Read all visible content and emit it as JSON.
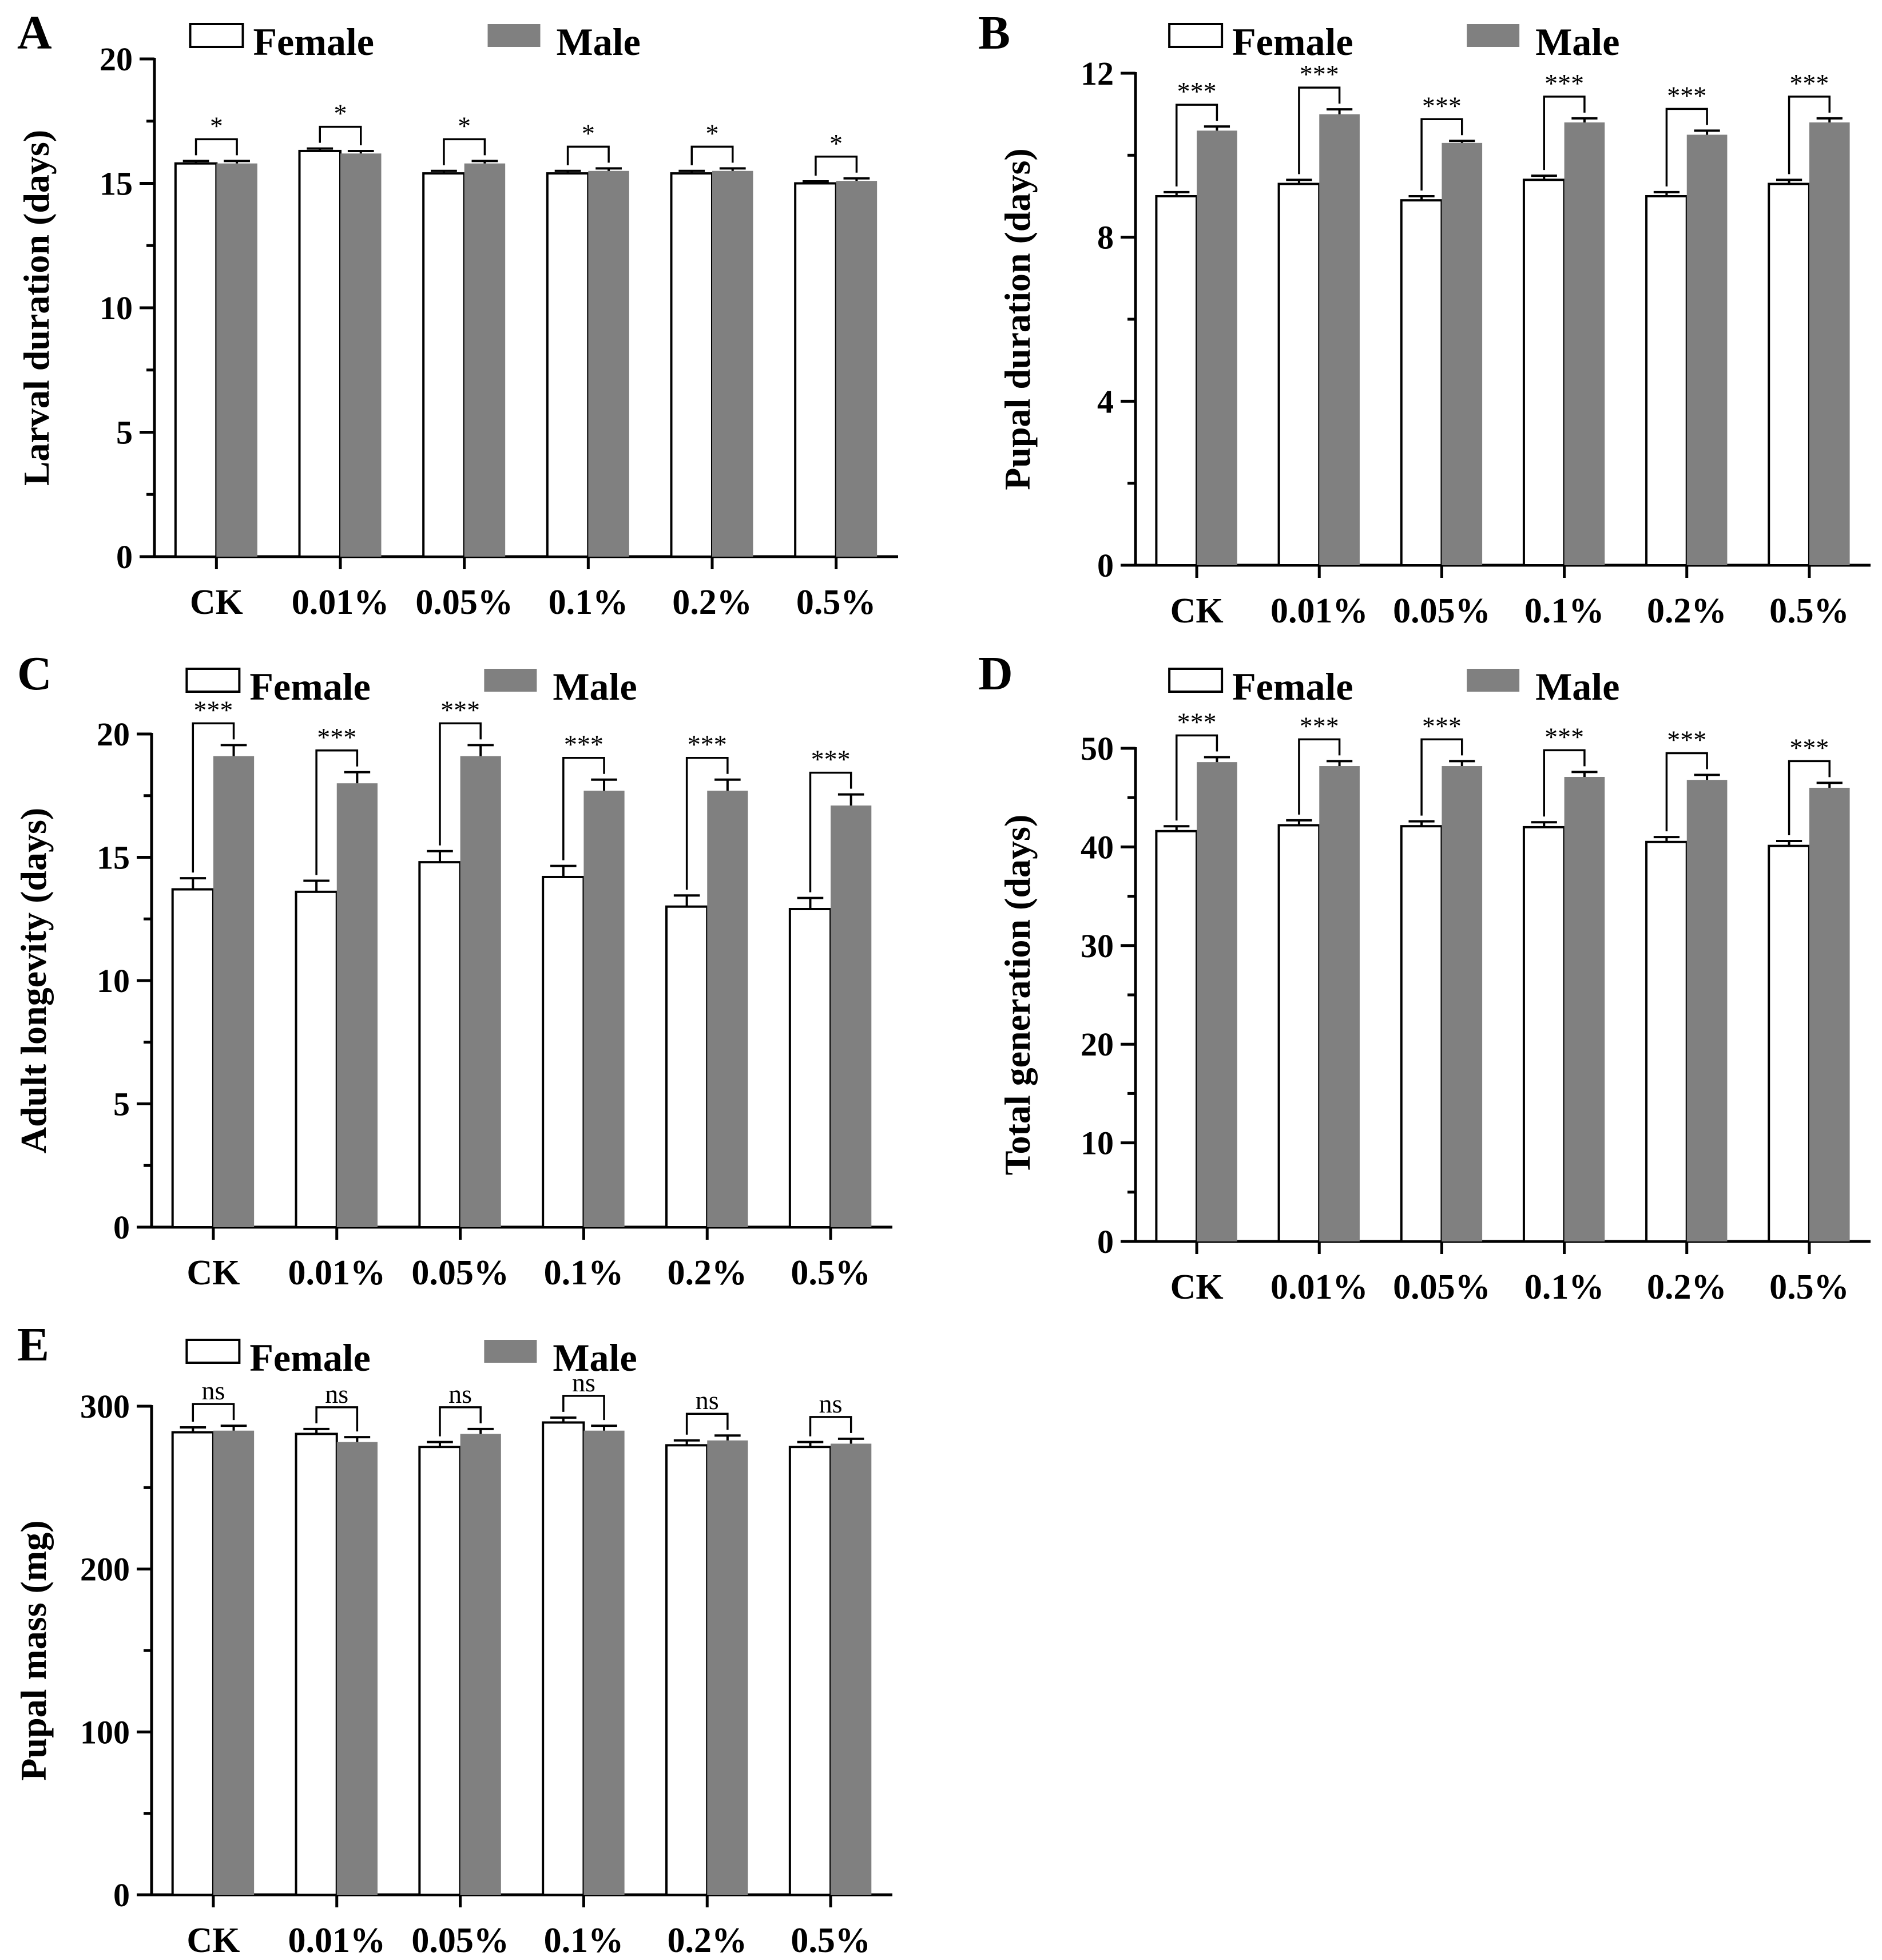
{
  "colors": {
    "female_fill": "#ffffff",
    "male_fill": "#808080",
    "stroke": "#000000"
  },
  "chart_data": [
    {
      "panel": "A",
      "type": "bar",
      "ylabel": "Larval duration (days)",
      "ylim": [
        0,
        20
      ],
      "yticks": [
        0,
        5,
        10,
        15,
        20
      ],
      "minor_per_major": 1,
      "categories": [
        "CK",
        "0.01%",
        "0.05%",
        "0.1%",
        "0.2%",
        "0.5%"
      ],
      "series": [
        {
          "name": "Female",
          "values": [
            15.8,
            16.3,
            15.4,
            15.4,
            15.4,
            15.0
          ],
          "errors": [
            0.1,
            0.1,
            0.1,
            0.1,
            0.1,
            0.08
          ]
        },
        {
          "name": "Male",
          "values": [
            15.8,
            16.2,
            15.8,
            15.5,
            15.5,
            15.1
          ],
          "errors": [
            0.1,
            0.1,
            0.1,
            0.1,
            0.1,
            0.1
          ]
        }
      ],
      "significance": [
        "*",
        "*",
        "*",
        "*",
        "*",
        "*"
      ]
    },
    {
      "panel": "B",
      "type": "bar",
      "ylabel": "Pupal duration (days)",
      "ylim": [
        0,
        12
      ],
      "yticks": [
        0,
        4,
        8,
        12
      ],
      "minor_per_major": 1,
      "categories": [
        "CK",
        "0.01%",
        "0.05%",
        "0.1%",
        "0.2%",
        "0.5%"
      ],
      "series": [
        {
          "name": "Female",
          "values": [
            9.0,
            9.3,
            8.9,
            9.4,
            9.0,
            9.3
          ],
          "errors": [
            0.1,
            0.1,
            0.1,
            0.1,
            0.1,
            0.1
          ]
        },
        {
          "name": "Male",
          "values": [
            10.6,
            11.0,
            10.3,
            10.8,
            10.5,
            10.8
          ],
          "errors": [
            0.1,
            0.12,
            0.05,
            0.1,
            0.1,
            0.1
          ]
        }
      ],
      "significance": [
        "***",
        "***",
        "***",
        "***",
        "***",
        "***"
      ]
    },
    {
      "panel": "C",
      "type": "bar",
      "ylabel": "Adult longevity (days)",
      "ylim": [
        0,
        20
      ],
      "yticks": [
        0,
        5,
        10,
        15,
        20
      ],
      "minor_per_major": 1,
      "categories": [
        "CK",
        "0.01%",
        "0.05%",
        "0.1%",
        "0.2%",
        "0.5%"
      ],
      "series": [
        {
          "name": "Female",
          "values": [
            13.7,
            13.6,
            14.8,
            14.2,
            13.0,
            12.9
          ],
          "errors": [
            0.45,
            0.45,
            0.45,
            0.45,
            0.45,
            0.45
          ]
        },
        {
          "name": "Male",
          "values": [
            19.1,
            18.0,
            19.1,
            17.7,
            17.7,
            17.1
          ],
          "errors": [
            0.45,
            0.45,
            0.45,
            0.45,
            0.45,
            0.45
          ]
        }
      ],
      "significance": [
        "***",
        "***",
        "***",
        "***",
        "***",
        "***"
      ]
    },
    {
      "panel": "D",
      "type": "bar",
      "ylabel": "Total generation (days)",
      "ylim": [
        0,
        50
      ],
      "yticks": [
        0,
        10,
        20,
        30,
        40,
        50
      ],
      "minor_per_major": 1,
      "categories": [
        "CK",
        "0.01%",
        "0.05%",
        "0.1%",
        "0.2%",
        "0.5%"
      ],
      "series": [
        {
          "name": "Female",
          "values": [
            41.6,
            42.2,
            42.1,
            42.0,
            40.5,
            40.1
          ],
          "errors": [
            0.5,
            0.5,
            0.5,
            0.5,
            0.5,
            0.5
          ]
        },
        {
          "name": "Male",
          "values": [
            48.6,
            48.2,
            48.2,
            47.1,
            46.8,
            46.0
          ],
          "errors": [
            0.5,
            0.5,
            0.5,
            0.5,
            0.5,
            0.5
          ]
        }
      ],
      "significance": [
        "***",
        "***",
        "***",
        "***",
        "***",
        "***"
      ]
    },
    {
      "panel": "E",
      "type": "bar",
      "ylabel": "Pupal mass (mg)",
      "ylim": [
        0,
        300
      ],
      "yticks": [
        0,
        100,
        200,
        300
      ],
      "minor_per_major": 1,
      "categories": [
        "CK",
        "0.01%",
        "0.05%",
        "0.1%",
        "0.2%",
        "0.5%"
      ],
      "series": [
        {
          "name": "Female",
          "values": [
            284,
            283,
            275,
            290,
            276,
            275
          ],
          "errors": [
            3,
            3,
            3,
            3,
            3,
            3
          ]
        },
        {
          "name": "Male",
          "values": [
            285,
            278,
            283,
            285,
            279,
            277
          ],
          "errors": [
            3,
            3,
            3,
            3,
            3,
            3
          ]
        }
      ],
      "significance": [
        "ns",
        "ns",
        "ns",
        "ns",
        "ns",
        "ns"
      ]
    }
  ]
}
